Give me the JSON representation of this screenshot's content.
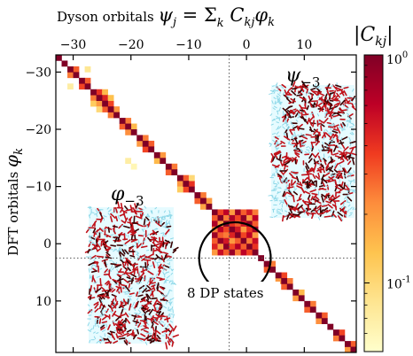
{
  "chart_data": {
    "type": "heatmap",
    "title": "Dyson orbitals ψj = Σk Ckj φk",
    "title_parts": {
      "prefix": "Dyson orbitals ",
      "psi": "ψ",
      "j": "j",
      "eq": " = Σ",
      "k1": "k",
      "C": " C",
      "kj": "kj",
      "phi": "φ",
      "k2": "k"
    },
    "xlabel": "Dyson orbitals ψj",
    "ylabel": "DFT orbitals φk",
    "ylabel_parts": {
      "text": "DFT orbitals ",
      "phi": "φ",
      "k": "k"
    },
    "x_range": [
      -33,
      19
    ],
    "y_range": [
      -33,
      19
    ],
    "x_ticks": [
      -30,
      -20,
      -10,
      0,
      10
    ],
    "y_ticks": [
      -30,
      -20,
      -10,
      0,
      10
    ],
    "x_tick_labels": [
      "−30",
      "−20",
      "−10",
      "0",
      "10"
    ],
    "y_tick_labels": [
      "−30",
      "−20",
      "−10",
      "0",
      "10"
    ],
    "dotted_lines": {
      "x": -3,
      "y": 2.5
    },
    "colorbar": {
      "label": "|Ckj|",
      "label_parts": {
        "C": "C",
        "kj": "kj"
      },
      "scale": "log",
      "range": [
        0.05,
        1
      ],
      "tick_labels": [
        {
          "value": 1,
          "text": "10",
          "exp": "0"
        },
        {
          "value": 0.1,
          "text": "10",
          "exp": "-1"
        }
      ],
      "colormap": [
        "#ffffcc",
        "#fee591",
        "#fec44f",
        "#fd8d3c",
        "#f03b20",
        "#bd0026",
        "#800026"
      ]
    },
    "annotations": [
      {
        "text": "8 DP states",
        "circle_center": [
          -2,
          2.5
        ],
        "circle_radius_units": 6.2
      },
      {
        "text": "ψ−3",
        "base": "ψ",
        "sub": "−3",
        "anchor": [
          8,
          -31
        ]
      },
      {
        "text": "φ−3",
        "base": "φ",
        "sub": "−3",
        "anchor": [
          -23,
          -11
        ]
      }
    ],
    "insets": [
      {
        "name": "psi-minus-3-orbital-image"
      },
      {
        "name": "phi-minus-3-orbital-image"
      }
    ],
    "diagonal": {
      "from": -33,
      "to": 19,
      "main_value": 1.0
    },
    "cells": [
      [
        -29,
        -28,
        0.35
      ],
      [
        -28,
        -29,
        0.3
      ],
      [
        -27,
        -26,
        0.25
      ],
      [
        -26,
        -27,
        0.4
      ],
      [
        -27,
        -25,
        0.12
      ],
      [
        -25,
        -27,
        0.15
      ],
      [
        -26,
        -25,
        0.2
      ],
      [
        -25,
        -26,
        0.45
      ],
      [
        -25,
        -24,
        0.3
      ],
      [
        -24,
        -25,
        0.35
      ],
      [
        -26,
        -24,
        0.1
      ],
      [
        -24,
        -26,
        0.14
      ],
      [
        -24,
        -23,
        0.25
      ],
      [
        -23,
        -24,
        0.2
      ],
      [
        -22,
        -21,
        0.3
      ],
      [
        -21,
        -22,
        0.25
      ],
      [
        -20,
        -21,
        0.15
      ],
      [
        -21,
        -20,
        0.22
      ],
      [
        -19,
        -18,
        0.2
      ],
      [
        -18,
        -19,
        0.25
      ],
      [
        -18,
        -17,
        0.35
      ],
      [
        -17,
        -18,
        0.3
      ],
      [
        -21,
        -15,
        0.07
      ],
      [
        -20,
        -14,
        0.06
      ],
      [
        -16,
        -15,
        0.15
      ],
      [
        -15,
        -16,
        0.2
      ],
      [
        -14,
        -13,
        0.3
      ],
      [
        -13,
        -14,
        0.25
      ],
      [
        -12,
        -11,
        0.2
      ],
      [
        -11,
        -12,
        0.3
      ],
      [
        -11,
        -10,
        0.35
      ],
      [
        -10,
        -11,
        0.4
      ],
      [
        -12,
        -10,
        0.12
      ],
      [
        -10,
        -12,
        0.1
      ],
      [
        -9,
        -8,
        0.3
      ],
      [
        -8,
        -9,
        0.25
      ],
      [
        -8,
        -7,
        0.18
      ],
      [
        -7,
        -8,
        0.2
      ],
      [
        -6,
        -5,
        0.25
      ],
      [
        -5,
        -6,
        0.2
      ],
      [
        -5,
        -4,
        0.15
      ],
      [
        -4,
        -5,
        0.2
      ],
      [
        -2,
        -1,
        0.4
      ],
      [
        -1,
        -2,
        0.35
      ],
      [
        3,
        4,
        0.3
      ],
      [
        4,
        3,
        0.25
      ],
      [
        5,
        6,
        0.2
      ],
      [
        6,
        5,
        0.35
      ],
      [
        6,
        7,
        0.3
      ],
      [
        7,
        6,
        0.25
      ],
      [
        8,
        9,
        0.2
      ],
      [
        9,
        8,
        0.15
      ],
      [
        10,
        11,
        0.3
      ],
      [
        11,
        10,
        0.25
      ],
      [
        12,
        13,
        0.22
      ],
      [
        13,
        12,
        0.3
      ],
      [
        15,
        16,
        0.25
      ],
      [
        16,
        15,
        0.35
      ],
      [
        17,
        18,
        0.2
      ],
      [
        18,
        17,
        0.3
      ],
      [
        -28,
        -31,
        0.08
      ],
      [
        -31,
        -28,
        0.07
      ],
      [
        -30,
        -31,
        0.3
      ],
      [
        -31,
        -30,
        0.25
      ]
    ],
    "dp_block": {
      "range": [
        -6,
        1
      ],
      "values": [
        [
          1.0,
          0.35,
          0.6,
          0.2,
          0.8,
          0.3,
          0.5,
          0.25
        ],
        [
          0.3,
          1.0,
          0.25,
          0.7,
          0.35,
          0.9,
          0.2,
          0.6
        ],
        [
          0.7,
          0.2,
          1.0,
          0.4,
          0.3,
          0.5,
          0.85,
          0.3
        ],
        [
          0.25,
          0.6,
          0.35,
          1.0,
          0.5,
          0.2,
          0.4,
          0.75
        ],
        [
          0.8,
          0.3,
          0.25,
          0.45,
          1.0,
          0.35,
          0.6,
          0.2
        ],
        [
          0.3,
          0.85,
          0.5,
          0.2,
          0.3,
          1.0,
          0.25,
          0.55
        ],
        [
          0.45,
          0.2,
          0.9,
          0.35,
          0.65,
          0.3,
          1.0,
          0.4
        ],
        [
          0.2,
          0.55,
          0.3,
          0.8,
          0.25,
          0.6,
          0.35,
          1.0
        ]
      ]
    }
  }
}
